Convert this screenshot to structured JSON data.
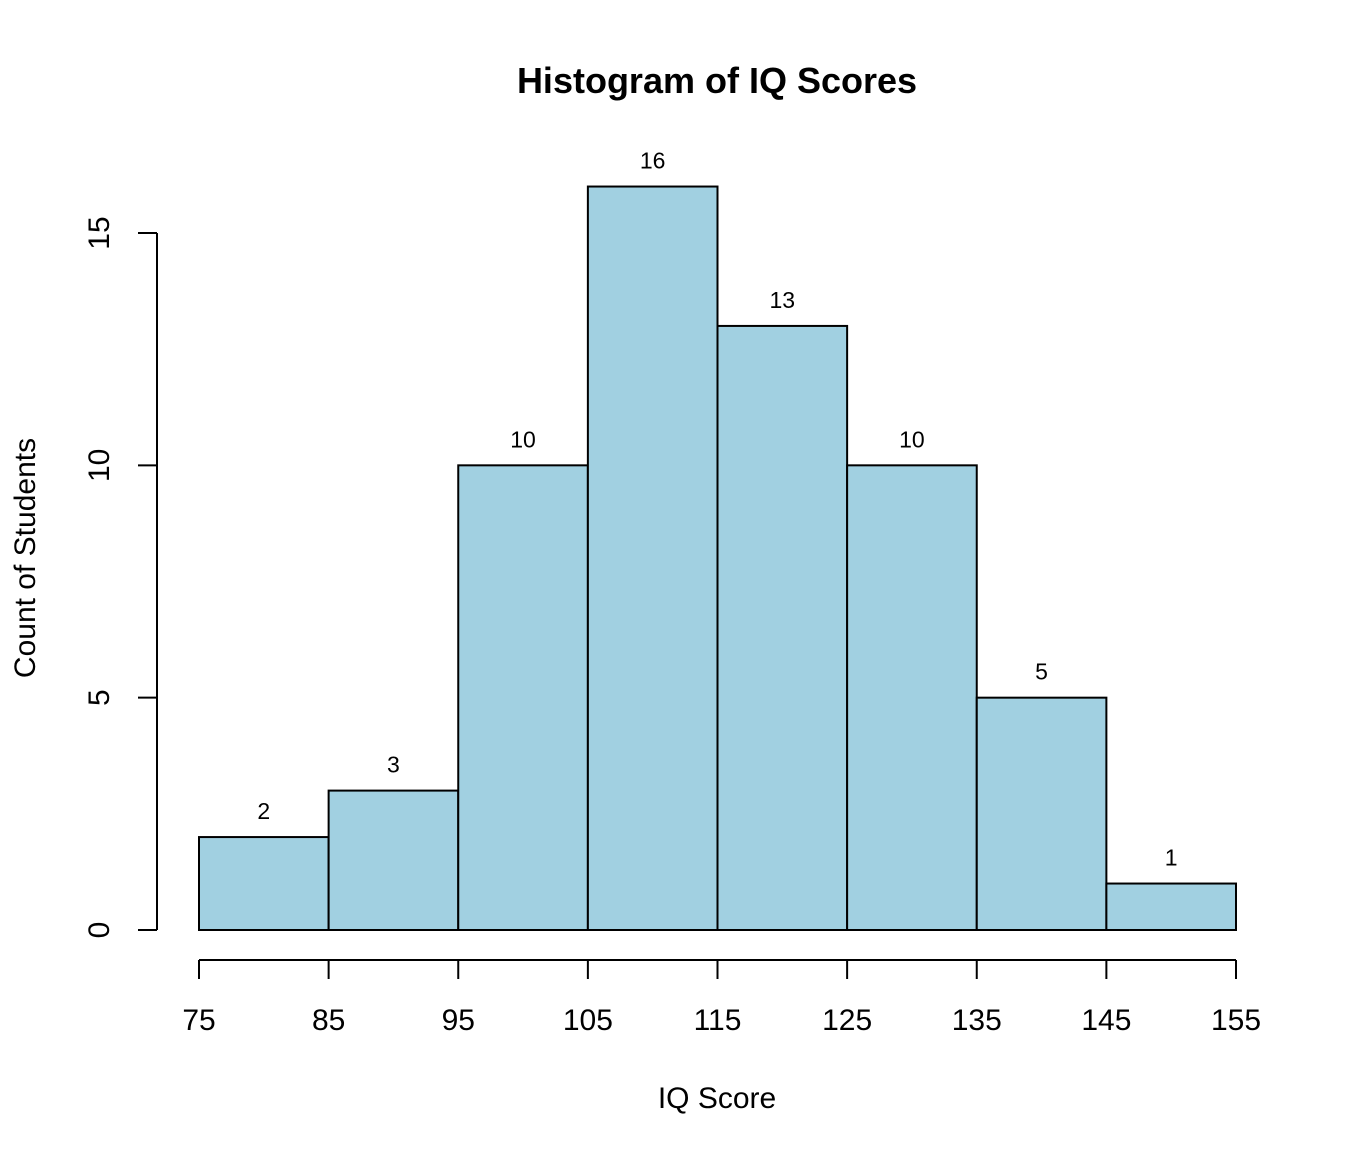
{
  "chart_data": {
    "type": "bar",
    "title": "Histogram of IQ Scores",
    "xlabel": "IQ Score",
    "ylabel": "Count of Students",
    "bin_edges": [
      75,
      85,
      95,
      105,
      115,
      125,
      135,
      145,
      155
    ],
    "values": [
      2,
      3,
      10,
      16,
      13,
      10,
      5,
      1
    ],
    "x_ticks": [
      75,
      85,
      95,
      105,
      115,
      125,
      135,
      145,
      155
    ],
    "y_ticks": [
      0,
      5,
      10,
      15
    ],
    "xlim": [
      75,
      155
    ],
    "ylim": [
      0,
      16
    ],
    "bar_color": "#a1d0e1",
    "edge_color": "#000000",
    "grid": false,
    "legend": "none"
  }
}
